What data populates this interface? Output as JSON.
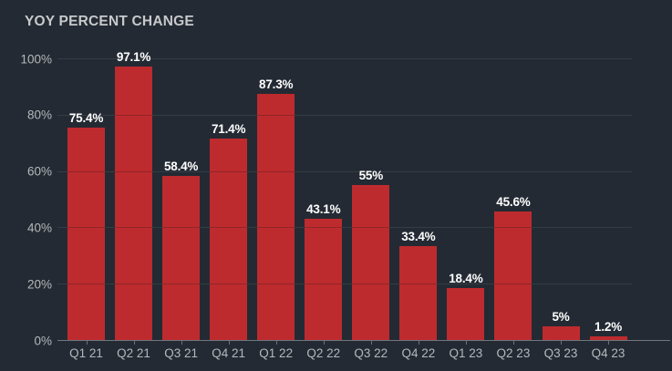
{
  "chart_data": {
    "type": "bar",
    "title": "YOY PERCENT CHANGE",
    "categories": [
      "Q1 21",
      "Q2 21",
      "Q3 21",
      "Q4 21",
      "Q1 22",
      "Q2 22",
      "Q3 22",
      "Q4 22",
      "Q1 23",
      "Q2 23",
      "Q3 23",
      "Q4 23"
    ],
    "values": [
      75.4,
      97.1,
      58.4,
      71.4,
      87.3,
      43.1,
      55,
      33.4,
      18.4,
      45.6,
      5,
      1.2
    ],
    "value_labels": [
      "75.4%",
      "97.1%",
      "58.4%",
      "71.4%",
      "87.3%",
      "43.1%",
      "55%",
      "33.4%",
      "18.4%",
      "45.6%",
      "5%",
      "1.2%"
    ],
    "xlabel": "",
    "ylabel": "",
    "ylim": [
      0,
      100
    ],
    "y_ticks": [
      0,
      20,
      40,
      60,
      80,
      100
    ],
    "y_tick_labels": [
      "0%",
      "20%",
      "40%",
      "60%",
      "80%",
      "100%"
    ],
    "grid": "horizontal",
    "legend": "none",
    "colors": {
      "background": "#232a33",
      "bar": "#c32b2e",
      "title_text": "#c7c9cb",
      "axis_text": "#b5b8bb",
      "gridline": "#464b52",
      "axis_line": "#72767c",
      "value_label_text": "#ffffff"
    }
  }
}
